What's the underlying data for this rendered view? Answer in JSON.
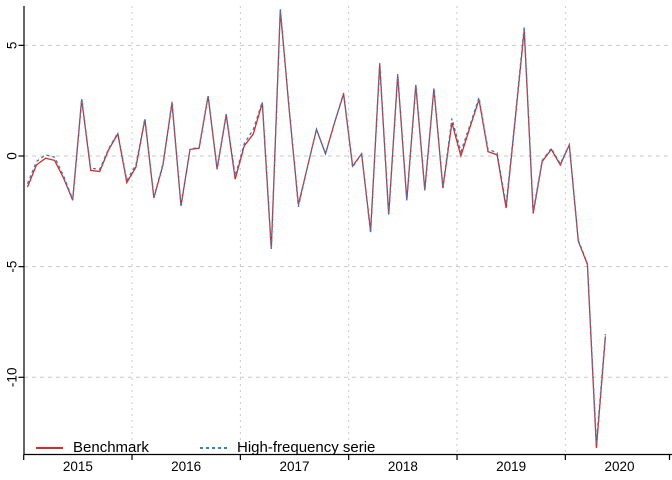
{
  "page": {
    "background": "#ffffff"
  },
  "chart_data": {
    "type": "line",
    "title": "",
    "frequency": "monthly",
    "x_start": "2015-01",
    "x_end": "2020-05",
    "x_axis": {
      "tick_labels": [
        "2015",
        "2016",
        "2017",
        "2018",
        "2019",
        "2020"
      ],
      "range": [
        2015.0,
        2021.0
      ],
      "gridline_years": [
        2016,
        2017,
        2018,
        2019,
        2020
      ]
    },
    "y_axis": {
      "ticks": [
        5,
        0,
        -5,
        -10
      ],
      "tick_labels": [
        "5",
        "0",
        "-5",
        "-10"
      ],
      "range": [
        -13.5,
        6.8
      ],
      "rotated_labels": true
    },
    "grid": {
      "show": true,
      "color": "#c9c9c9"
    },
    "axis_color": "#000000",
    "legend": {
      "position": "bottom-left",
      "items": [
        {
          "label": "Benchmark",
          "color": "#d62b2b",
          "line_style": "solid"
        },
        {
          "label": "High-frequency serie",
          "color": "#3d7fb4",
          "line_style": "dashed"
        }
      ]
    },
    "series": [
      {
        "name": "Benchmark",
        "color": "#d62b2b",
        "style": "solid",
        "values": [
          -1.4,
          -0.4,
          -0.1,
          -0.2,
          -1.0,
          -2.0,
          2.55,
          -0.65,
          -0.7,
          0.3,
          1.0,
          -1.2,
          -0.5,
          1.65,
          -1.9,
          -0.4,
          2.4,
          -2.25,
          0.3,
          0.35,
          2.7,
          -0.6,
          1.85,
          -1.05,
          0.45,
          1.0,
          2.4,
          -4.2,
          6.6,
          2.0,
          -2.2,
          -0.5,
          1.2,
          0.1,
          1.5,
          2.8,
          -0.45,
          0.1,
          -3.4,
          4.15,
          -2.65,
          3.65,
          -2.0,
          3.2,
          -1.55,
          3.05,
          -1.45,
          1.5,
          0.0,
          1.3,
          2.55,
          0.2,
          0.05,
          -2.35,
          1.6,
          5.7,
          -2.6,
          -0.25,
          0.3,
          -0.4,
          0.5,
          -3.85,
          -4.9,
          -13.2,
          -8.15
        ]
      },
      {
        "name": "High-frequency serie",
        "color": "#3d7fb4",
        "style": "dashed",
        "values": [
          -1.25,
          -0.25,
          0.05,
          -0.05,
          -0.9,
          -1.95,
          2.6,
          -0.55,
          -0.6,
          0.35,
          1.05,
          -1.1,
          -0.4,
          1.7,
          -1.85,
          -0.35,
          2.45,
          -2.3,
          0.3,
          0.4,
          2.75,
          -0.55,
          1.9,
          -0.9,
          0.55,
          1.2,
          2.45,
          -4.25,
          6.65,
          2.0,
          -2.3,
          -0.5,
          1.2,
          0.1,
          1.5,
          2.85,
          -0.5,
          0.1,
          -3.5,
          4.2,
          -2.7,
          3.7,
          -2.0,
          3.25,
          -1.5,
          3.05,
          -1.4,
          1.7,
          0.2,
          1.4,
          2.65,
          0.3,
          0.15,
          -2.2,
          1.7,
          5.85,
          -2.5,
          -0.2,
          0.35,
          -0.35,
          0.5,
          -3.8,
          -4.85,
          -12.95,
          -8.05
        ]
      }
    ]
  }
}
